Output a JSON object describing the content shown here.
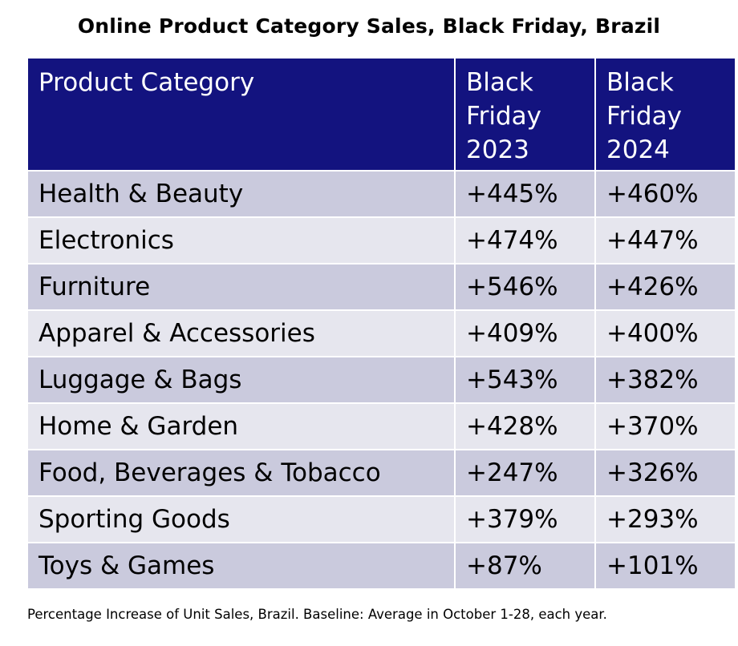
{
  "title": "Online Product Category Sales, Black Friday, Brazil",
  "footnote": "Percentage Increase of Unit Sales, Brazil. Baseline: Average in October 1-28, each year.",
  "colors": {
    "header_bg": "#13137f",
    "header_text": "#ffffff",
    "row_dark": "#cacadd",
    "row_light": "#e6e6ee"
  },
  "chart_data": {
    "type": "table",
    "title": "Online Product Category Sales, Black Friday, Brazil",
    "columns": [
      "Product Category",
      "Black Friday 2023",
      "Black Friday 2024"
    ],
    "header_lines": [
      [
        "Product Category"
      ],
      [
        "Black",
        "Friday",
        "2023"
      ],
      [
        "Black",
        "Friday",
        "2024"
      ]
    ],
    "rows": [
      [
        "Health & Beauty",
        "+445%",
        "+460%"
      ],
      [
        "Electronics",
        "+474%",
        "+447%"
      ],
      [
        "Furniture",
        "+546%",
        "+426%"
      ],
      [
        "Apparel & Accessories",
        "+409%",
        "+400%"
      ],
      [
        "Luggage & Bags",
        "+543%",
        "+382%"
      ],
      [
        "Home & Garden",
        "+428%",
        "+370%"
      ],
      [
        "Food, Beverages & Tobacco",
        "+247%",
        "+326%"
      ],
      [
        "Sporting Goods",
        "+379%",
        "+293%"
      ],
      [
        "Toys & Games",
        "+87%",
        "+101%"
      ]
    ],
    "series": [
      {
        "name": "Black Friday 2023",
        "values": [
          445,
          474,
          546,
          409,
          543,
          428,
          247,
          379,
          87
        ]
      },
      {
        "name": "Black Friday 2024",
        "values": [
          460,
          447,
          426,
          400,
          382,
          370,
          326,
          293,
          101
        ]
      }
    ],
    "categories": [
      "Health & Beauty",
      "Electronics",
      "Furniture",
      "Apparel & Accessories",
      "Luggage & Bags",
      "Home & Garden",
      "Food, Beverages & Tobacco",
      "Sporting Goods",
      "Toys & Games"
    ]
  }
}
